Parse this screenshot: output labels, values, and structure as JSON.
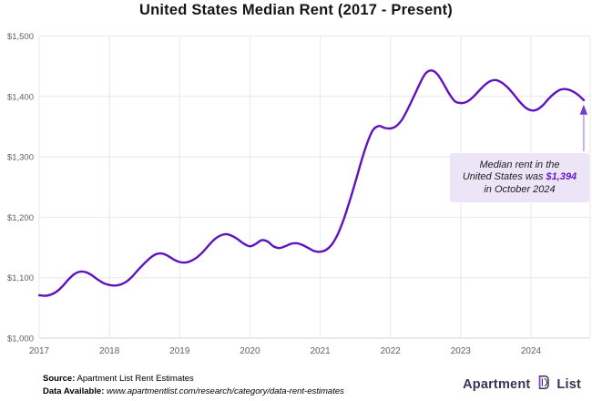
{
  "title": "United States Median Rent (2017 - Present)",
  "chart_data": {
    "type": "line",
    "title": "United States Median Rent (2017 - Present)",
    "xlabel": "",
    "ylabel": "",
    "ylim": [
      1000,
      1500
    ],
    "grid": true,
    "line_color": "#6012c0",
    "y_tick_labels": [
      "$1,000",
      "$1,100",
      "$1,200",
      "$1,300",
      "$1,400",
      "$1,500"
    ],
    "y_tick_values": [
      1000,
      1100,
      1200,
      1300,
      1400,
      1500
    ],
    "x_tick_labels": [
      "2017",
      "2018",
      "2019",
      "2020",
      "2021",
      "2022",
      "2023",
      "2024"
    ],
    "x_tick_values": [
      2017,
      2018,
      2019,
      2020,
      2021,
      2022,
      2023,
      2024
    ],
    "months": [
      "2017-01",
      "2017-02",
      "2017-03",
      "2017-04",
      "2017-05",
      "2017-06",
      "2017-07",
      "2017-08",
      "2017-09",
      "2017-10",
      "2017-11",
      "2017-12",
      "2018-01",
      "2018-02",
      "2018-03",
      "2018-04",
      "2018-05",
      "2018-06",
      "2018-07",
      "2018-08",
      "2018-09",
      "2018-10",
      "2018-11",
      "2018-12",
      "2019-01",
      "2019-02",
      "2019-03",
      "2019-04",
      "2019-05",
      "2019-06",
      "2019-07",
      "2019-08",
      "2019-09",
      "2019-10",
      "2019-11",
      "2019-12",
      "2020-01",
      "2020-02",
      "2020-03",
      "2020-04",
      "2020-05",
      "2020-06",
      "2020-07",
      "2020-08",
      "2020-09",
      "2020-10",
      "2020-11",
      "2020-12",
      "2021-01",
      "2021-02",
      "2021-03",
      "2021-04",
      "2021-05",
      "2021-06",
      "2021-07",
      "2021-08",
      "2021-09",
      "2021-10",
      "2021-11",
      "2021-12",
      "2022-01",
      "2022-02",
      "2022-03",
      "2022-04",
      "2022-05",
      "2022-06",
      "2022-07",
      "2022-08",
      "2022-09",
      "2022-10",
      "2022-11",
      "2022-12",
      "2023-01",
      "2023-02",
      "2023-03",
      "2023-04",
      "2023-05",
      "2023-06",
      "2023-07",
      "2023-08",
      "2023-09",
      "2023-10",
      "2023-11",
      "2023-12",
      "2024-01",
      "2024-02",
      "2024-03",
      "2024-04",
      "2024-05",
      "2024-06",
      "2024-07",
      "2024-08",
      "2024-09",
      "2024-10"
    ],
    "values": [
      1071,
      1070,
      1072,
      1077,
      1086,
      1097,
      1106,
      1110,
      1109,
      1104,
      1097,
      1091,
      1088,
      1087,
      1089,
      1094,
      1103,
      1114,
      1124,
      1133,
      1139,
      1140,
      1136,
      1130,
      1126,
      1125,
      1128,
      1134,
      1143,
      1154,
      1164,
      1170,
      1172,
      1169,
      1163,
      1156,
      1152,
      1156,
      1162,
      1160,
      1152,
      1149,
      1152,
      1156,
      1157,
      1154,
      1149,
      1144,
      1143,
      1146,
      1155,
      1172,
      1196,
      1226,
      1258,
      1292,
      1322,
      1344,
      1351,
      1348,
      1347,
      1351,
      1362,
      1380,
      1400,
      1421,
      1438,
      1443,
      1437,
      1422,
      1405,
      1392,
      1389,
      1391,
      1398,
      1408,
      1418,
      1425,
      1427,
      1423,
      1415,
      1404,
      1392,
      1382,
      1377,
      1378,
      1385,
      1396,
      1405,
      1411,
      1412,
      1409,
      1403,
      1394
    ],
    "last_point": {
      "month": "2024-10",
      "value": 1394
    },
    "legend": null,
    "colors": {
      "grid": "#e8e8e8",
      "axis": "#d4d4d4",
      "tick_text": "#606060",
      "arrow_shaft": "#c3b2e8",
      "arrow_head": "#7040c8"
    }
  },
  "annotation": {
    "line1": "Median rent in the",
    "line2_prefix": "United States was ",
    "value": "$1,394",
    "line3": "in October 2024"
  },
  "footer": {
    "source_label": "Source:",
    "source_text": " Apartment List Rent Estimates",
    "available_label": "Data Available:",
    "available_url": " www.apartmentlist.com/research/category/data-rent-estimates"
  },
  "logo": {
    "word1": "Apartment",
    "word2": "List",
    "text_color": "#3a3357",
    "accent_color": "#7c3aed"
  }
}
